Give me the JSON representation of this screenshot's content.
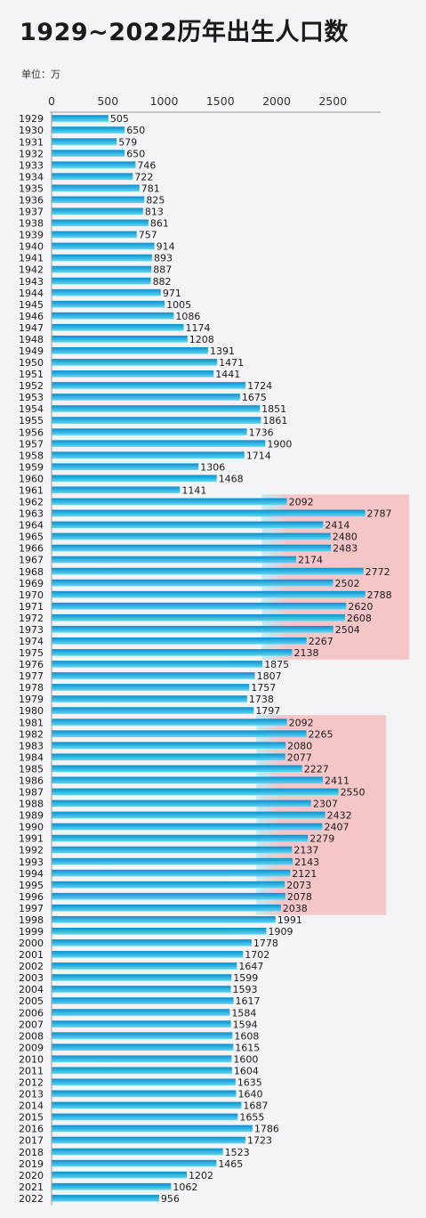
{
  "title": "1929~2022历年出生人口数",
  "unit_label": "单位：万",
  "colors": {
    "bar_top": "#0a8fce",
    "bar_bottom": "#5fd6f2",
    "highlight_red": "#f6a0a0",
    "highlight_blue": "#7fe0f7"
  },
  "chart_data": {
    "type": "bar",
    "orientation": "horizontal",
    "title": "1929~2022历年出生人口数",
    "xlabel": "",
    "ylabel": "",
    "xlim": [
      0,
      2900
    ],
    "xticks": [
      0,
      500,
      1000,
      1500,
      2000,
      2500
    ],
    "grid": false,
    "categories": [
      "1929",
      "1930",
      "1931",
      "1932",
      "1933",
      "1934",
      "1935",
      "1936",
      "1937",
      "1938",
      "1939",
      "1940",
      "1941",
      "1942",
      "1943",
      "1944",
      "1945",
      "1946",
      "1947",
      "1948",
      "1949",
      "1950",
      "1951",
      "1952",
      "1953",
      "1954",
      "1955",
      "1956",
      "1957",
      "1958",
      "1959",
      "1960",
      "1961",
      "1962",
      "1963",
      "1964",
      "1965",
      "1966",
      "1967",
      "1968",
      "1969",
      "1970",
      "1971",
      "1972",
      "1973",
      "1974",
      "1975",
      "1976",
      "1977",
      "1978",
      "1979",
      "1980",
      "1981",
      "1982",
      "1983",
      "1984",
      "1985",
      "1986",
      "1987",
      "1988",
      "1989",
      "1990",
      "1991",
      "1992",
      "1993",
      "1994",
      "1995",
      "1996",
      "1997",
      "1998",
      "1999",
      "2000",
      "2001",
      "2002",
      "2003",
      "2004",
      "2005",
      "2006",
      "2007",
      "2008",
      "2009",
      "2010",
      "2011",
      "2012",
      "2013",
      "2014",
      "2015",
      "2016",
      "2017",
      "2018",
      "2019",
      "2020",
      "2021",
      "2022"
    ],
    "values": [
      505,
      650,
      579,
      650,
      746,
      722,
      781,
      825,
      813,
      861,
      757,
      914,
      893,
      887,
      882,
      971,
      1005,
      1086,
      1174,
      1208,
      1391,
      1471,
      1441,
      1724,
      1675,
      1851,
      1861,
      1736,
      1900,
      1714,
      1306,
      1468,
      1141,
      2092,
      2787,
      2414,
      2480,
      2483,
      2174,
      2772,
      2502,
      2788,
      2620,
      2608,
      2504,
      2267,
      2138,
      1875,
      1807,
      1757,
      1738,
      1797,
      2092,
      2265,
      2080,
      2077,
      2227,
      2411,
      2550,
      2307,
      2432,
      2407,
      2279,
      2137,
      2143,
      2121,
      2073,
      2078,
      2038,
      1991,
      1909,
      1778,
      1702,
      1647,
      1599,
      1593,
      1617,
      1584,
      1594,
      1608,
      1615,
      1600,
      1604,
      1635,
      1640,
      1687,
      1655,
      1786,
      1723,
      1523,
      1465,
      1202,
      1062,
      956
    ],
    "highlights": [
      {
        "from": "1962",
        "to": "1975",
        "x_from": 1870
      },
      {
        "from": "1981",
        "to": "1997",
        "x_from": 1820
      }
    ]
  }
}
